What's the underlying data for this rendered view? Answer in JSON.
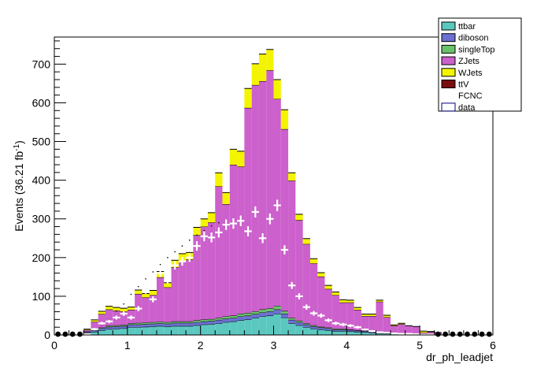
{
  "chart_data": {
    "type": "bar",
    "stacked": true,
    "xlabel": "dr_ph_leadjet",
    "ylabel_main": "Events (36.21 fb",
    "ylabel_sup": "-1",
    "ylabel_close": ")",
    "xlim": [
      0,
      6
    ],
    "ylim": [
      0,
      770
    ],
    "xticks": [
      0,
      1,
      2,
      3,
      4,
      5,
      6
    ],
    "yticks": [
      0,
      100,
      200,
      300,
      400,
      500,
      600,
      700
    ],
    "bin_width": 0.1,
    "grid": false,
    "legend_position": "top-right",
    "bin_centers": [
      0.05,
      0.15,
      0.25,
      0.35,
      0.45,
      0.55,
      0.65,
      0.75,
      0.85,
      0.95,
      1.05,
      1.15,
      1.25,
      1.35,
      1.45,
      1.55,
      1.65,
      1.75,
      1.85,
      1.95,
      2.05,
      2.15,
      2.25,
      2.35,
      2.45,
      2.55,
      2.65,
      2.75,
      2.85,
      2.95,
      3.05,
      3.15,
      3.25,
      3.35,
      3.45,
      3.55,
      3.65,
      3.75,
      3.85,
      3.95,
      4.05,
      4.15,
      4.25,
      4.35,
      4.45,
      4.55,
      4.65,
      4.75,
      4.85,
      4.95,
      5.05,
      5.15,
      5.25,
      5.35,
      5.45,
      5.55,
      5.65,
      5.75,
      5.85,
      5.95
    ],
    "series": [
      {
        "name": "ttbar",
        "color": "#5bc8c0",
        "values": [
          0,
          0,
          0,
          0,
          5,
          8,
          12,
          15,
          16,
          17,
          20,
          20,
          21,
          22,
          23,
          22,
          23,
          23,
          23,
          25,
          27,
          28,
          30,
          33,
          35,
          38,
          40,
          44,
          48,
          50,
          55,
          45,
          30,
          25,
          20,
          16,
          14,
          12,
          10,
          10,
          9,
          8,
          7,
          5,
          4,
          3,
          3,
          2,
          2,
          1,
          1,
          1,
          1,
          0,
          0,
          0,
          0,
          0,
          0,
          0
        ]
      },
      {
        "name": "diboson",
        "color": "#6c70d0",
        "values": [
          0,
          0,
          0,
          0,
          3,
          4,
          5,
          6,
          6,
          6,
          7,
          7,
          7,
          7,
          7,
          7,
          8,
          8,
          8,
          8,
          8,
          8,
          9,
          9,
          9,
          10,
          10,
          10,
          10,
          11,
          11,
          10,
          9,
          8,
          7,
          6,
          5,
          5,
          4,
          4,
          4,
          3,
          3,
          3,
          2,
          2,
          2,
          2,
          1,
          1,
          1,
          1,
          0,
          0,
          0,
          0,
          0,
          0,
          0,
          0
        ]
      },
      {
        "name": "singleTop",
        "color": "#6ac26a",
        "values": [
          0,
          0,
          0,
          0,
          1,
          2,
          2,
          3,
          3,
          3,
          3,
          4,
          4,
          4,
          4,
          4,
          4,
          4,
          4,
          5,
          5,
          5,
          5,
          6,
          6,
          7,
          7,
          7,
          8,
          8,
          9,
          7,
          5,
          4,
          3,
          3,
          2,
          2,
          2,
          2,
          1,
          1,
          1,
          1,
          1,
          1,
          1,
          0,
          0,
          0,
          0,
          0,
          0,
          0,
          0,
          0,
          0,
          0,
          0,
          0
        ]
      },
      {
        "name": "ZJets",
        "color": "#cc60cc",
        "values": [
          0,
          0,
          0,
          0,
          4,
          20,
          35,
          42,
          38,
          35,
          35,
          75,
          65,
          70,
          115,
          90,
          140,
          155,
          160,
          220,
          240,
          250,
          340,
          290,
          390,
          380,
          530,
          585,
          590,
          615,
          535,
          470,
          355,
          260,
          205,
          160,
          130,
          100,
          87,
          68,
          70,
          53,
          38,
          40,
          79,
          40,
          18,
          24,
          21,
          20,
          4,
          6,
          5,
          0,
          0,
          0,
          0,
          0,
          0,
          0
        ]
      },
      {
        "name": "WJets",
        "color": "#f4f400",
        "values": [
          0,
          0,
          0,
          0,
          2,
          5,
          7,
          8,
          8,
          8,
          7,
          10,
          10,
          12,
          15,
          12,
          18,
          20,
          18,
          20,
          20,
          25,
          35,
          30,
          40,
          40,
          50,
          55,
          70,
          54,
          50,
          50,
          20,
          15,
          14,
          12,
          10,
          9,
          8,
          7,
          6,
          6,
          5,
          5,
          4,
          5,
          2,
          2,
          0,
          0,
          4,
          1,
          0,
          0,
          0,
          0,
          0,
          0,
          0,
          0
        ]
      },
      {
        "name": "ttV",
        "color": "#7a0e0e",
        "values": []
      },
      {
        "name": "FCNC",
        "color": "#000000",
        "values": [
          0,
          0,
          0,
          0,
          0,
          0,
          0,
          0,
          0,
          0,
          0,
          0,
          0,
          0,
          0,
          0,
          0,
          0,
          0,
          0,
          0,
          0,
          0,
          0,
          0,
          0,
          0,
          0,
          0,
          0,
          0,
          0,
          0,
          0,
          0,
          0,
          0,
          0,
          0,
          0,
          0,
          0,
          0,
          0,
          0,
          0,
          0,
          0,
          0,
          0,
          0,
          0,
          0,
          0,
          0,
          0,
          0,
          0,
          0,
          0
        ]
      },
      {
        "name": "data",
        "color": "#ffffff",
        "values": [
          0,
          0,
          0,
          0,
          2,
          15,
          30,
          35,
          45,
          55,
          45,
          68,
          115,
          92,
          160,
          142,
          180,
          190,
          200,
          230,
          255,
          252,
          265,
          285,
          288,
          295,
          268,
          318,
          250,
          300,
          335,
          220,
          128,
          100,
          72,
          56,
          50,
          38,
          30,
          27,
          24,
          20,
          14,
          10,
          7,
          6,
          4,
          3,
          3,
          2,
          1,
          1,
          0,
          0,
          0,
          0,
          0,
          0,
          0,
          0
        ]
      }
    ],
    "fcnc_dotted": {
      "x": [
        0.65,
        0.75,
        0.85,
        0.95,
        1.05,
        1.15,
        1.25,
        1.35,
        1.45,
        1.55,
        1.65,
        1.75,
        1.85,
        1.95,
        2.05,
        2.15,
        2.25
      ],
      "y": [
        25,
        40,
        62,
        80,
        105,
        125,
        145,
        163,
        182,
        200,
        215,
        230,
        245,
        258,
        270,
        282,
        290
      ]
    }
  }
}
